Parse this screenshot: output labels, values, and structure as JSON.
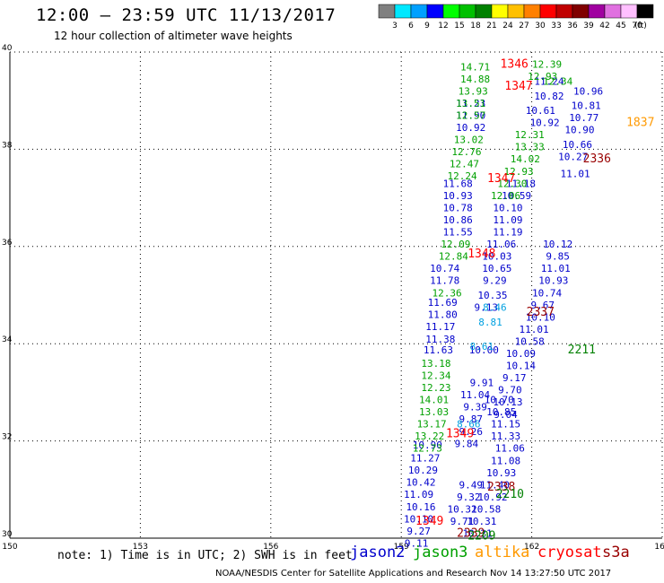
{
  "header": {
    "title": "12:00 – 23:59 UTC 11/13/2017",
    "subtitle": "12 hour collection of altimeter wave heights"
  },
  "colorbar": {
    "unit_label": "(ft)",
    "segments": [
      {
        "label": "3",
        "color": "#808080"
      },
      {
        "label": "6",
        "color": "#00e8ff"
      },
      {
        "label": "9",
        "color": "#00a0ff"
      },
      {
        "label": "12",
        "color": "#0000ff"
      },
      {
        "label": "15",
        "color": "#00ff00"
      },
      {
        "label": "18",
        "color": "#00c000"
      },
      {
        "label": "21",
        "color": "#008000"
      },
      {
        "label": "24",
        "color": "#ffff00"
      },
      {
        "label": "27",
        "color": "#ffc000"
      },
      {
        "label": "30",
        "color": "#ff8000"
      },
      {
        "label": "33",
        "color": "#ff0000"
      },
      {
        "label": "36",
        "color": "#c00000"
      },
      {
        "label": "39",
        "color": "#800000"
      },
      {
        "label": "42",
        "color": "#a000a0"
      },
      {
        "label": "45",
        "color": "#e070e0"
      },
      {
        "label": "70",
        "color": "#ffc0ff"
      },
      {
        "label": "",
        "color": "#000000"
      }
    ]
  },
  "footer": {
    "note": "note: 1) Time is in UTC; 2) SWH is in feet",
    "credit": "NOAA/NESDIS Center for Satellite Applications and Research    Nov 14 13:27:50 UTC 2017"
  },
  "satellites": [
    {
      "name": "jason2",
      "color": "#0000cc"
    },
    {
      "name": "jason3",
      "color": "#00a000"
    },
    {
      "name": "altika",
      "color": "#ff9900"
    },
    {
      "name": "cryosat",
      "color": "#ff0000"
    },
    {
      "name": "s3a",
      "color": "#990000"
    }
  ],
  "chart_data": {
    "type": "scatter",
    "title": "12:00 – 23:59 UTC 11/13/2017",
    "subtitle": "12 hour collection of altimeter wave heights",
    "xlabel": "",
    "ylabel": "",
    "xlim": [
      150,
      165
    ],
    "ylim": [
      30,
      40
    ],
    "x_ticks": [
      "150",
      "153",
      "156",
      "159",
      "162",
      "165"
    ],
    "y_ticks": [
      "30",
      "32",
      "34",
      "36",
      "38",
      "40"
    ],
    "grid": true,
    "series": [
      {
        "name": "jason2",
        "color": "#0000cc",
        "points": [
          {
            "x": 160.6,
            "y": 38.95,
            "v": "11.23"
          },
          {
            "x": 160.6,
            "y": 38.7,
            "v": "11.90"
          },
          {
            "x": 160.6,
            "y": 38.45,
            "v": "10.92"
          },
          {
            "x": 160.3,
            "y": 37.3,
            "v": "11.68"
          },
          {
            "x": 160.3,
            "y": 37.05,
            "v": "10.93"
          },
          {
            "x": 160.3,
            "y": 36.8,
            "v": "10.78"
          },
          {
            "x": 160.3,
            "y": 36.55,
            "v": "10.86"
          },
          {
            "x": 160.3,
            "y": 36.3,
            "v": "11.55"
          },
          {
            "x": 160.0,
            "y": 35.55,
            "v": "10.74"
          },
          {
            "x": 160.0,
            "y": 35.3,
            "v": "11.78"
          },
          {
            "x": 159.95,
            "y": 34.85,
            "v": "11.69"
          },
          {
            "x": 159.95,
            "y": 34.6,
            "v": "11.80"
          },
          {
            "x": 159.9,
            "y": 34.35,
            "v": "11.17"
          },
          {
            "x": 159.9,
            "y": 34.1,
            "v": "11.38"
          },
          {
            "x": 159.85,
            "y": 33.87,
            "v": "11.63"
          },
          {
            "x": 159.6,
            "y": 31.92,
            "v": "10.90"
          },
          {
            "x": 159.55,
            "y": 31.65,
            "v": "11.27"
          },
          {
            "x": 159.5,
            "y": 31.4,
            "v": "10.29"
          },
          {
            "x": 159.45,
            "y": 31.15,
            "v": "10.42"
          },
          {
            "x": 159.4,
            "y": 30.9,
            "v": "11.09"
          },
          {
            "x": 159.45,
            "y": 30.65,
            "v": "10.16"
          },
          {
            "x": 159.4,
            "y": 30.4,
            "v": "10.10"
          },
          {
            "x": 159.4,
            "y": 30.15,
            "v": "9.27"
          },
          {
            "x": 159.35,
            "y": 29.9,
            "v": "9.11"
          },
          {
            "x": 162.4,
            "y": 39.4,
            "v": "11.24"
          },
          {
            "x": 162.4,
            "y": 39.1,
            "v": "10.82"
          },
          {
            "x": 162.2,
            "y": 38.8,
            "v": "10.61"
          },
          {
            "x": 162.3,
            "y": 38.55,
            "v": "10.92"
          },
          {
            "x": 161.75,
            "y": 37.3,
            "v": "11.18"
          },
          {
            "x": 161.65,
            "y": 37.05,
            "v": "10.59"
          },
          {
            "x": 161.45,
            "y": 36.8,
            "v": "10.10"
          },
          {
            "x": 161.45,
            "y": 36.55,
            "v": "11.09"
          },
          {
            "x": 161.45,
            "y": 36.3,
            "v": "11.19"
          },
          {
            "x": 161.3,
            "y": 36.05,
            "v": "11.06"
          },
          {
            "x": 161.2,
            "y": 35.8,
            "v": "10.03"
          },
          {
            "x": 161.2,
            "y": 35.55,
            "v": "10.65"
          },
          {
            "x": 161.15,
            "y": 35.3,
            "v": "9.29"
          },
          {
            "x": 161.1,
            "y": 35.0,
            "v": "10.35"
          },
          {
            "x": 160.95,
            "y": 34.75,
            "v": "9.13"
          },
          {
            "x": 160.9,
            "y": 33.87,
            "v": "10.00"
          },
          {
            "x": 160.85,
            "y": 33.2,
            "v": "9.91"
          },
          {
            "x": 160.7,
            "y": 32.95,
            "v": "11.04"
          },
          {
            "x": 160.7,
            "y": 32.7,
            "v": "9.39"
          },
          {
            "x": 160.6,
            "y": 32.45,
            "v": "9.87"
          },
          {
            "x": 160.6,
            "y": 32.2,
            "v": "9.26"
          },
          {
            "x": 160.5,
            "y": 31.95,
            "v": "9.84"
          },
          {
            "x": 160.6,
            "y": 31.1,
            "v": "9.49"
          },
          {
            "x": 160.55,
            "y": 30.85,
            "v": "9.32"
          },
          {
            "x": 160.4,
            "y": 30.6,
            "v": "10.32"
          },
          {
            "x": 160.4,
            "y": 30.35,
            "v": "9.71"
          },
          {
            "x": 161.25,
            "y": 32.85,
            "v": "10.70"
          },
          {
            "x": 161.3,
            "y": 32.6,
            "v": "10.85"
          },
          {
            "x": 161.4,
            "y": 32.35,
            "v": "11.15"
          },
          {
            "x": 161.4,
            "y": 32.1,
            "v": "11.33"
          },
          {
            "x": 161.5,
            "y": 31.85,
            "v": "11.06"
          },
          {
            "x": 161.4,
            "y": 31.6,
            "v": "11.08"
          },
          {
            "x": 161.3,
            "y": 31.35,
            "v": "10.93"
          },
          {
            "x": 161.15,
            "y": 31.1,
            "v": "11.40"
          },
          {
            "x": 161.1,
            "y": 30.85,
            "v": "10.92"
          },
          {
            "x": 160.95,
            "y": 30.6,
            "v": "10.58"
          },
          {
            "x": 160.85,
            "y": 30.35,
            "v": "10.31"
          },
          {
            "x": 160.75,
            "y": 30.1,
            "v": "10.21"
          },
          {
            "x": 162.6,
            "y": 36.05,
            "v": "10.12"
          },
          {
            "x": 162.6,
            "y": 35.8,
            "v": "9.85"
          },
          {
            "x": 162.55,
            "y": 35.55,
            "v": "11.01"
          },
          {
            "x": 162.5,
            "y": 35.3,
            "v": "10.93"
          },
          {
            "x": 162.35,
            "y": 35.05,
            "v": "10.74"
          },
          {
            "x": 162.25,
            "y": 34.8,
            "v": "9.67"
          },
          {
            "x": 162.2,
            "y": 34.55,
            "v": "10.10"
          },
          {
            "x": 162.05,
            "y": 34.3,
            "v": "11.01"
          },
          {
            "x": 161.95,
            "y": 34.05,
            "v": "10.58"
          },
          {
            "x": 161.75,
            "y": 33.8,
            "v": "10.09"
          },
          {
            "x": 161.75,
            "y": 33.55,
            "v": "10.14"
          },
          {
            "x": 161.6,
            "y": 33.3,
            "v": "9.17"
          },
          {
            "x": 161.5,
            "y": 33.05,
            "v": "9.70"
          },
          {
            "x": 161.45,
            "y": 32.8,
            "v": "10.13"
          },
          {
            "x": 161.4,
            "y": 32.55,
            "v": "9.04"
          },
          {
            "x": 163.3,
            "y": 39.2,
            "v": "10.96"
          },
          {
            "x": 163.25,
            "y": 38.9,
            "v": "10.81"
          },
          {
            "x": 163.2,
            "y": 38.65,
            "v": "10.77"
          },
          {
            "x": 163.1,
            "y": 38.4,
            "v": "10.90"
          },
          {
            "x": 163.05,
            "y": 38.1,
            "v": "10.66"
          },
          {
            "x": 162.95,
            "y": 37.85,
            "v": "10.27"
          },
          {
            "x": 163.0,
            "y": 37.5,
            "v": "11.01"
          }
        ]
      },
      {
        "name": "jason3",
        "color": "#00a000",
        "points": [
          {
            "x": 160.7,
            "y": 39.7,
            "v": "14.71"
          },
          {
            "x": 160.7,
            "y": 39.45,
            "v": "14.88"
          },
          {
            "x": 160.65,
            "y": 39.2,
            "v": "13.93"
          },
          {
            "x": 160.6,
            "y": 38.95,
            "v": "13.51"
          },
          {
            "x": 160.6,
            "y": 38.7,
            "v": "12.57"
          },
          {
            "x": 160.55,
            "y": 38.2,
            "v": "13.02"
          },
          {
            "x": 160.5,
            "y": 37.95,
            "v": "12.76"
          },
          {
            "x": 160.45,
            "y": 37.7,
            "v": "12.47"
          },
          {
            "x": 160.4,
            "y": 37.45,
            "v": "12.24"
          },
          {
            "x": 160.25,
            "y": 36.05,
            "v": "12.09"
          },
          {
            "x": 160.2,
            "y": 35.8,
            "v": "12.84"
          },
          {
            "x": 160.05,
            "y": 35.05,
            "v": "12.36"
          },
          {
            "x": 159.8,
            "y": 33.6,
            "v": "13.18"
          },
          {
            "x": 159.8,
            "y": 33.35,
            "v": "12.34"
          },
          {
            "x": 159.8,
            "y": 33.1,
            "v": "12.23"
          },
          {
            "x": 159.75,
            "y": 32.85,
            "v": "14.01"
          },
          {
            "x": 159.75,
            "y": 32.6,
            "v": "13.03"
          },
          {
            "x": 159.7,
            "y": 32.35,
            "v": "13.17"
          },
          {
            "x": 159.65,
            "y": 32.1,
            "v": "13.22"
          },
          {
            "x": 159.6,
            "y": 31.85,
            "v": "12.73"
          },
          {
            "x": 162.35,
            "y": 39.75,
            "v": "12.39"
          },
          {
            "x": 162.25,
            "y": 39.5,
            "v": "12.93"
          },
          {
            "x": 162.6,
            "y": 39.4,
            "v": "12.34"
          },
          {
            "x": 161.95,
            "y": 38.3,
            "v": "12.31"
          },
          {
            "x": 161.95,
            "y": 38.05,
            "v": "13.33"
          },
          {
            "x": 161.85,
            "y": 37.8,
            "v": "14.02"
          },
          {
            "x": 161.7,
            "y": 37.55,
            "v": "12.93"
          },
          {
            "x": 161.55,
            "y": 37.3,
            "v": "12.30"
          },
          {
            "x": 161.4,
            "y": 37.05,
            "v": "12.06"
          }
        ]
      },
      {
        "name": "altika",
        "color": "#ff9900",
        "points": [
          {
            "x": 164.5,
            "y": 38.55,
            "v": "1837"
          }
        ]
      },
      {
        "name": "cryosat",
        "color": "#ff0000",
        "points": [
          {
            "x": 161.6,
            "y": 39.75,
            "v": "1346"
          },
          {
            "x": 161.7,
            "y": 39.3,
            "v": "1347"
          },
          {
            "x": 161.3,
            "y": 37.4,
            "v": "1347"
          },
          {
            "x": 160.85,
            "y": 35.85,
            "v": "1348"
          },
          {
            "x": 160.35,
            "y": 32.15,
            "v": "1349"
          },
          {
            "x": 159.65,
            "y": 30.35,
            "v": "1349"
          }
        ]
      },
      {
        "name": "s3a",
        "color": "#990000",
        "points": [
          {
            "x": 163.5,
            "y": 37.8,
            "v": "2336"
          },
          {
            "x": 162.2,
            "y": 34.65,
            "v": "2337"
          },
          {
            "x": 161.3,
            "y": 31.05,
            "v": "2338"
          },
          {
            "x": 160.6,
            "y": 30.1,
            "v": "2339"
          }
        ]
      },
      {
        "name": "jason3-track-id",
        "color": "#008000",
        "points": [
          {
            "x": 163.15,
            "y": 33.87,
            "v": "2211"
          },
          {
            "x": 161.5,
            "y": 30.9,
            "v": "2210"
          },
          {
            "x": 160.85,
            "y": 30.05,
            "v": "2209"
          }
        ]
      },
      {
        "name": "saral-aux",
        "color": "#00a0e0",
        "points": [
          {
            "x": 161.15,
            "y": 34.75,
            "v": "8.46"
          },
          {
            "x": 161.05,
            "y": 34.45,
            "v": "8.81"
          },
          {
            "x": 160.85,
            "y": 33.95,
            "v": "8.61"
          },
          {
            "x": 160.55,
            "y": 32.35,
            "v": "8.66"
          }
        ]
      }
    ]
  }
}
